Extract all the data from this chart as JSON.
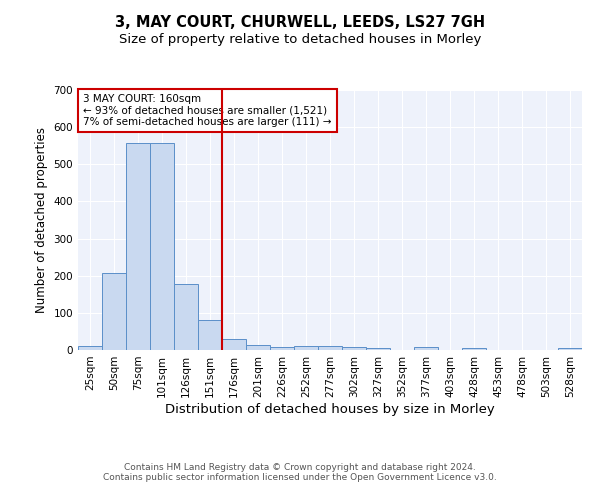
{
  "title1": "3, MAY COURT, CHURWELL, LEEDS, LS27 7GH",
  "title2": "Size of property relative to detached houses in Morley",
  "xlabel": "Distribution of detached houses by size in Morley",
  "ylabel": "Number of detached properties",
  "categories": [
    "25sqm",
    "50sqm",
    "75sqm",
    "101sqm",
    "126sqm",
    "151sqm",
    "176sqm",
    "201sqm",
    "226sqm",
    "252sqm",
    "277sqm",
    "302sqm",
    "327sqm",
    "352sqm",
    "377sqm",
    "403sqm",
    "428sqm",
    "453sqm",
    "478sqm",
    "503sqm",
    "528sqm"
  ],
  "values": [
    11,
    207,
    557,
    557,
    178,
    80,
    30,
    13,
    7,
    10,
    10,
    8,
    5,
    0,
    8,
    0,
    6,
    0,
    0,
    0,
    5
  ],
  "bar_color": "#c9d9f0",
  "bar_edge_color": "#5b8fc9",
  "vline_color": "#cc0000",
  "annotation_text": "3 MAY COURT: 160sqm\n← 93% of detached houses are smaller (1,521)\n7% of semi-detached houses are larger (111) →",
  "annotation_box_color": "white",
  "annotation_box_edge": "#cc0000",
  "footer": "Contains HM Land Registry data © Crown copyright and database right 2024.\nContains public sector information licensed under the Open Government Licence v3.0.",
  "ylim": [
    0,
    700
  ],
  "yticks": [
    0,
    100,
    200,
    300,
    400,
    500,
    600,
    700
  ],
  "bg_color": "#eef2fb",
  "grid_color": "white",
  "title1_fontsize": 10.5,
  "title2_fontsize": 9.5,
  "xlabel_fontsize": 9.5,
  "ylabel_fontsize": 8.5,
  "tick_fontsize": 7.5,
  "ann_fontsize": 7.5,
  "footer_fontsize": 6.5
}
